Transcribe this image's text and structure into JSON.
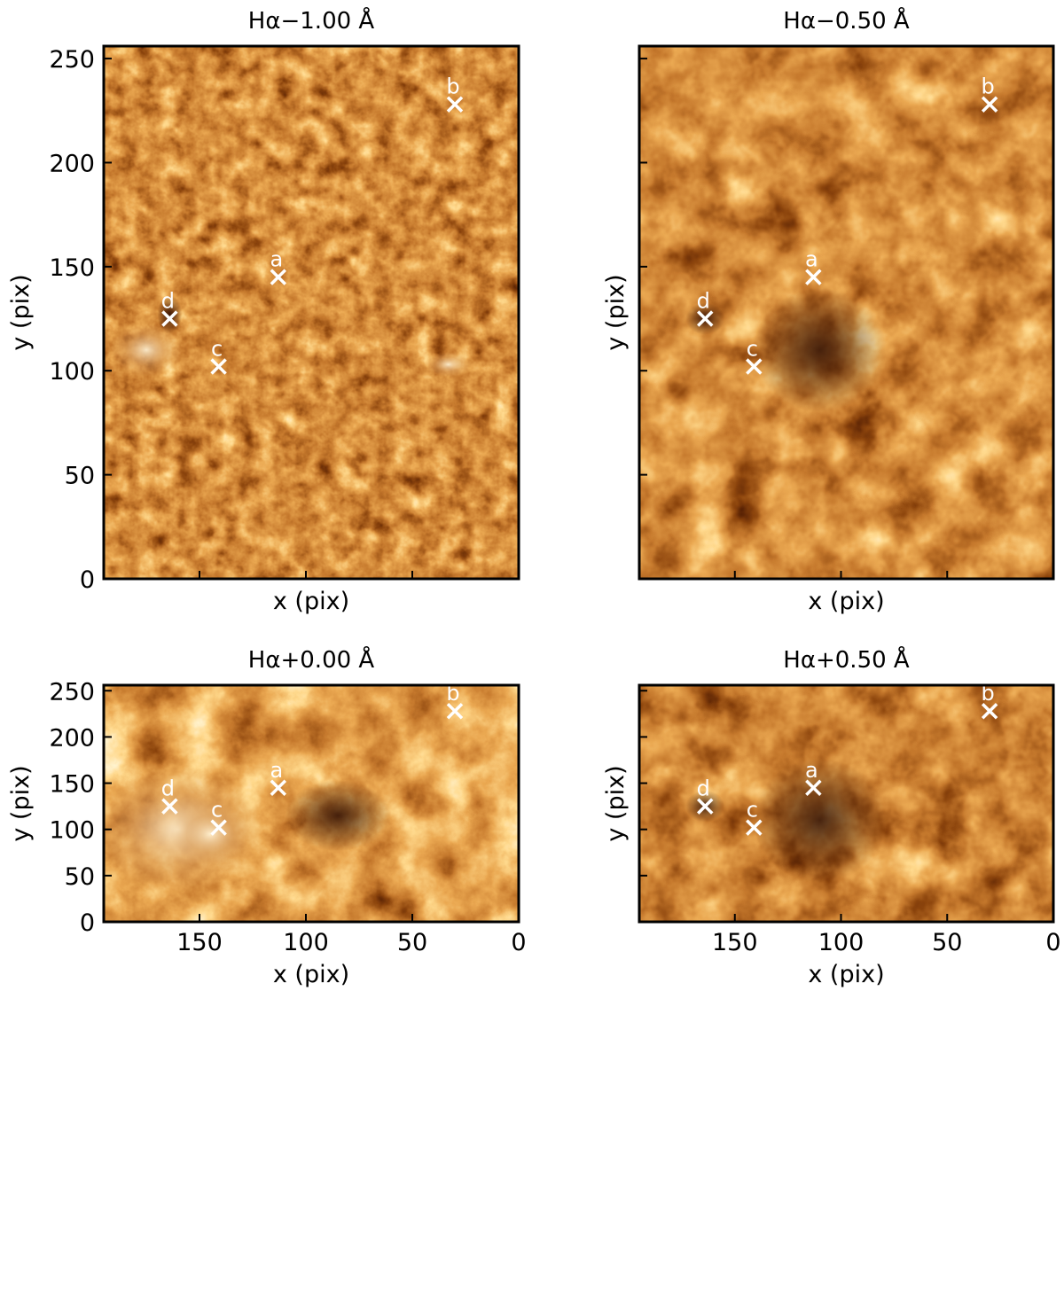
{
  "chart_data": [
    {
      "type": "heatmap",
      "title": "Hα−1.00 Å",
      "xlabel": "x (pix)",
      "ylabel": "y (pix)",
      "xlim": [
        195,
        0
      ],
      "ylim": [
        0,
        256
      ],
      "xticks": [],
      "yticks": [
        "0",
        "50",
        "100",
        "150",
        "200",
        "250"
      ],
      "colormap": "afmhot",
      "markers": [
        {
          "label": "a",
          "x": 113,
          "y": 145
        },
        {
          "label": "b",
          "x": 30,
          "y": 228
        },
        {
          "label": "c",
          "x": 141,
          "y": 102
        },
        {
          "label": "d",
          "x": 164,
          "y": 125
        }
      ]
    },
    {
      "type": "heatmap",
      "title": "Hα−0.50 Å",
      "xlabel": "x (pix)",
      "ylabel": "y (pix)",
      "xlim": [
        195,
        0
      ],
      "ylim": [
        0,
        256
      ],
      "xticks": [],
      "yticks": [],
      "colormap": "afmhot",
      "markers": [
        {
          "label": "a",
          "x": 113,
          "y": 145
        },
        {
          "label": "b",
          "x": 30,
          "y": 228
        },
        {
          "label": "c",
          "x": 141,
          "y": 102
        },
        {
          "label": "d",
          "x": 164,
          "y": 125
        }
      ]
    },
    {
      "type": "heatmap",
      "title": "Hα+0.00 Å",
      "xlabel": "x (pix)",
      "ylabel": "y (pix)",
      "xlim": [
        195,
        0
      ],
      "ylim": [
        0,
        256
      ],
      "xticks": [
        "150",
        "100",
        "50",
        "0"
      ],
      "yticks": [
        "0",
        "50",
        "100",
        "150",
        "200",
        "250"
      ],
      "colormap": "afmhot",
      "markers": [
        {
          "label": "a",
          "x": 113,
          "y": 145
        },
        {
          "label": "b",
          "x": 30,
          "y": 228
        },
        {
          "label": "c",
          "x": 141,
          "y": 102
        },
        {
          "label": "d",
          "x": 164,
          "y": 125
        }
      ]
    },
    {
      "type": "heatmap",
      "title": "Hα+0.50 Å",
      "xlabel": "x (pix)",
      "ylabel": "y (pix)",
      "xlim": [
        195,
        0
      ],
      "ylim": [
        0,
        256
      ],
      "xticks": [
        "150",
        "100",
        "50",
        "0"
      ],
      "yticks": [],
      "colormap": "afmhot",
      "markers": [
        {
          "label": "a",
          "x": 113,
          "y": 145
        },
        {
          "label": "b",
          "x": 30,
          "y": 228
        },
        {
          "label": "c",
          "x": 141,
          "y": 102
        },
        {
          "label": "d",
          "x": 164,
          "y": 125
        }
      ]
    }
  ],
  "colors": {
    "dark": "#2a0a00",
    "mid": "#8a4a14",
    "bright": "#d9a060",
    "highlight": "#fff0d0",
    "marker": "#ffffff"
  }
}
